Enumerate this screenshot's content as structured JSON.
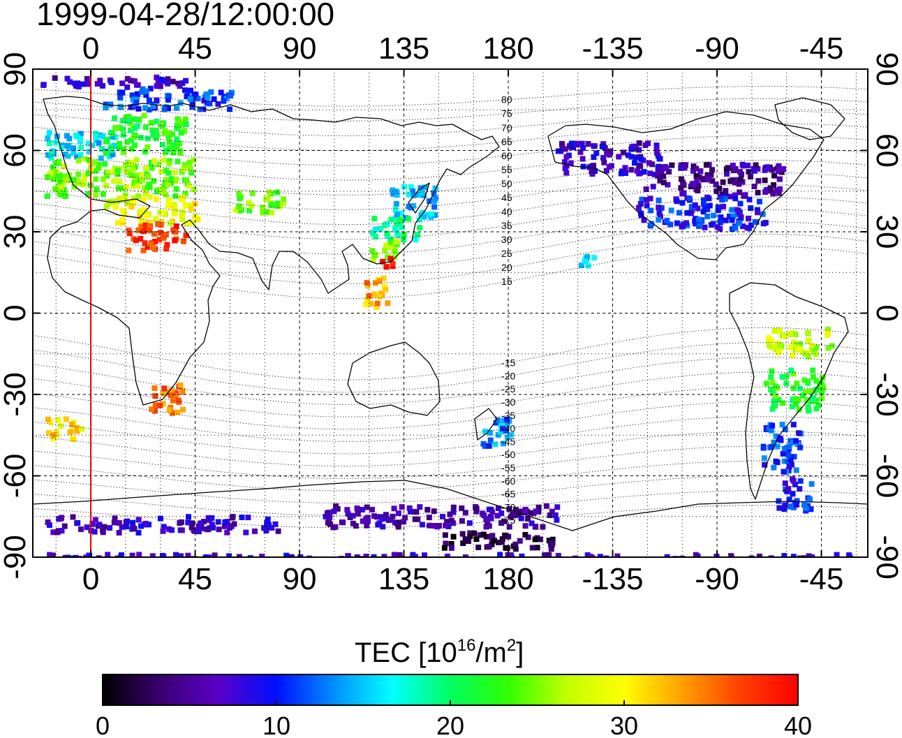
{
  "title": "1999-04-28/12:00:00",
  "map": {
    "projection": "equirectangular",
    "lon_range": [
      -25,
      335
    ],
    "lat_range": [
      -90,
      90
    ],
    "lon_ticks": [
      0,
      45,
      90,
      135,
      180,
      225,
      270,
      315
    ],
    "lon_tick_labels": [
      "0",
      "45",
      "90",
      "135",
      "180",
      "-135",
      "-90",
      "-45"
    ],
    "lat_ticks": [
      -90,
      -60,
      -30,
      0,
      30,
      60,
      90
    ],
    "lat_tick_labels": [
      "-90",
      "-60",
      "-30",
      "0",
      "30",
      "60",
      "90"
    ],
    "grid": true,
    "grid_spacing_deg": 15,
    "marker_line_lon": 0,
    "marker_line_color": "#e00000",
    "magnetic_latitude_labels": [
      "80",
      "75",
      "70",
      "65",
      "60",
      "55",
      "50",
      "45",
      "40",
      "35",
      "30",
      "25",
      "20",
      "15",
      "-15",
      "-20",
      "-25",
      "-30",
      "-35",
      "-40",
      "-45",
      "-50",
      "-55",
      "-60",
      "-65",
      "-70",
      "-75"
    ]
  },
  "colorbar": {
    "title": "TEC  [10",
    "title_exp": "16",
    "title_unit": "/m",
    "title_unit_exp": "2",
    "title_close": "]",
    "min": 0,
    "max": 40,
    "tick_labels": [
      "0",
      "10",
      "20",
      "30",
      "40"
    ],
    "colors": [
      "#000000",
      "#3a0070",
      "#5a00c8",
      "#0010ff",
      "#0090ff",
      "#00ffff",
      "#00ff60",
      "#30ff00",
      "#c0ff00",
      "#ffff00",
      "#ffa000",
      "#ff4000",
      "#ff0000"
    ]
  },
  "chart_data": {
    "type": "heatmap",
    "title": "1999-04-28/12:00:00",
    "value_label": "TEC  [10^16/m^2]",
    "value_range": [
      0,
      40
    ],
    "regions": [
      {
        "lon": [
          -22,
          40
        ],
        "lat": [
          88,
          84
        ],
        "tec": 7
      },
      {
        "lon": [
          5,
          60
        ],
        "lat": [
          84,
          76
        ],
        "tec": 11
      },
      {
        "lon": [
          -20,
          10
        ],
        "lat": [
          68,
          58
        ],
        "tec": 16
      },
      {
        "lon": [
          5,
          40
        ],
        "lat": [
          74,
          60
        ],
        "tec": 22
      },
      {
        "lon": [
          -20,
          45
        ],
        "lat": [
          58,
          44
        ],
        "tec": 25
      },
      {
        "lon": [
          5,
          45
        ],
        "lat": [
          44,
          34
        ],
        "tec": 29
      },
      {
        "lon": [
          15,
          40
        ],
        "lat": [
          34,
          24
        ],
        "tec": 37
      },
      {
        "lon": [
          60,
          82
        ],
        "lat": [
          46,
          38
        ],
        "tec": 25
      },
      {
        "lon": [
          128,
          148
        ],
        "lat": [
          48,
          36
        ],
        "tec": 15
      },
      {
        "lon": [
          120,
          142
        ],
        "lat": [
          36,
          28
        ],
        "tec": 19
      },
      {
        "lon": [
          120,
          132
        ],
        "lat": [
          28,
          20
        ],
        "tec": 25
      },
      {
        "lon": [
          122,
          130
        ],
        "lat": [
          22,
          18
        ],
        "tec": 38
      },
      {
        "lon": [
          117,
          127
        ],
        "lat": [
          14,
          2
        ],
        "tec": 33
      },
      {
        "lon": [
          25,
          40
        ],
        "lat": [
          -24,
          -36
        ],
        "tec": 35
      },
      {
        "lon": [
          -20,
          -5
        ],
        "lat": [
          -38,
          -46
        ],
        "tec": 31
      },
      {
        "lon": [
          168,
          182
        ],
        "lat": [
          -38,
          -48
        ],
        "tec": 13
      },
      {
        "lon": [
          200,
          245
        ],
        "lat": [
          64,
          52
        ],
        "tec": 7
      },
      {
        "lon": [
          238,
          298
        ],
        "lat": [
          56,
          44
        ],
        "tec": 5
      },
      {
        "lon": [
          235,
          290
        ],
        "lat": [
          44,
          32
        ],
        "tec": 10
      },
      {
        "lon": [
          210,
          220
        ],
        "lat": [
          22,
          18
        ],
        "tec": 14
      },
      {
        "lon": [
          290,
          320
        ],
        "lat": [
          -5,
          -15
        ],
        "tec": 27
      },
      {
        "lon": [
          290,
          315
        ],
        "lat": [
          -20,
          -35
        ],
        "tec": 22
      },
      {
        "lon": [
          288,
          305
        ],
        "lat": [
          -40,
          -58
        ],
        "tec": 11
      },
      {
        "lon": [
          295,
          310
        ],
        "lat": [
          -60,
          -72
        ],
        "tec": 10
      },
      {
        "lon": [
          -20,
          80
        ],
        "lat": [
          -74,
          -80
        ],
        "tec": 7
      },
      {
        "lon": [
          100,
          200
        ],
        "lat": [
          -70,
          -78
        ],
        "tec": 6
      },
      {
        "lon": [
          150,
          200
        ],
        "lat": [
          -80,
          -86
        ],
        "tec": 2
      },
      {
        "lon": [
          -20,
          330
        ],
        "lat": [
          -88,
          -90
        ],
        "tec": 7
      }
    ]
  }
}
